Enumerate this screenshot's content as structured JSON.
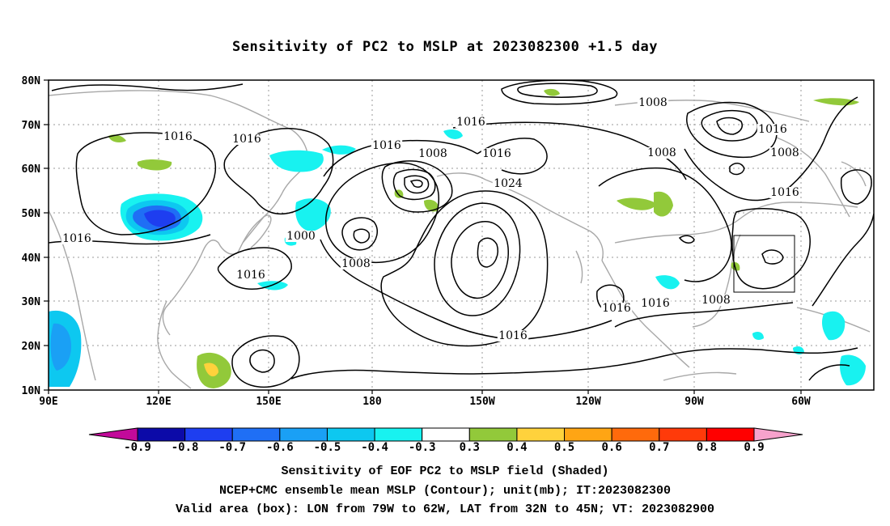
{
  "title": "Sensitivity of PC2 to MSLP at 2023082300 +1.5 day",
  "lat_labels": [
    "80N",
    "70N",
    "60N",
    "50N",
    "40N",
    "30N",
    "20N",
    "10N"
  ],
  "lon_labels": [
    "90E",
    "120E",
    "150E",
    "180",
    "150W",
    "120W",
    "90W",
    "60W"
  ],
  "contour_labels": [
    {
      "text": "1016"
    },
    {
      "text": "1016"
    },
    {
      "text": "1016"
    },
    {
      "text": "1016"
    },
    {
      "text": "1008"
    },
    {
      "text": "1016"
    },
    {
      "text": "1024"
    },
    {
      "text": "1008"
    },
    {
      "text": "1016"
    },
    {
      "text": "1000"
    },
    {
      "text": "1008"
    },
    {
      "text": "1016"
    },
    {
      "text": "1008"
    },
    {
      "text": "1016"
    },
    {
      "text": "1008"
    },
    {
      "text": "1016"
    },
    {
      "text": "1016"
    },
    {
      "text": "1008"
    },
    {
      "text": "1016"
    },
    {
      "text": "1016"
    }
  ],
  "colorbar": {
    "labels": [
      "-0.9",
      "-0.8",
      "-0.7",
      "-0.6",
      "-0.5",
      "-0.4",
      "-0.3",
      "0.3",
      "0.4",
      "0.5",
      "0.6",
      "0.7",
      "0.8",
      "0.9"
    ],
    "colors": [
      "#0c0aa8",
      "#1e3ef0",
      "#1f6ff5",
      "#1aa0f5",
      "#0dc8f0",
      "#18f2f0",
      "#ffffff",
      "#92c93a",
      "#ffd23c",
      "#ffa514",
      "#ff6a0c",
      "#ff3a0a",
      "#ff0000"
    ],
    "left_tip_color": "#c20a9a",
    "right_tip_color": "#f6a2cc"
  },
  "valid_box": {
    "lon_w": -79,
    "lon_e": -62,
    "lat_s": 32,
    "lat_n": 45
  },
  "footer": [
    "Sensitivity of EOF PC2 to MSLP field (Shaded)",
    "NCEP+CMC ensemble mean MSLP (Contour); unit(mb); IT:2023082300",
    "Valid area (box): LON from 79W to 62W, LAT from 32N to 45N; VT: 2023082900"
  ]
}
